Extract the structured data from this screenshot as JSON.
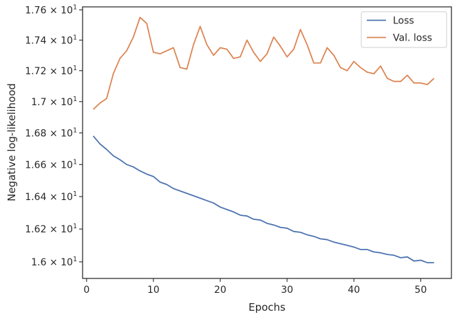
{
  "chart_data": {
    "type": "line",
    "xlabel": "Epochs",
    "ylabel": "Negative log-likelihood",
    "xlim": [
      -0.6,
      54.6
    ],
    "ylim": [
      15.9,
      17.62
    ],
    "y_scale": "log",
    "grid": false,
    "legend_position": "top-right",
    "x_ticks": [
      {
        "value": 0,
        "label": "0"
      },
      {
        "value": 10,
        "label": "10"
      },
      {
        "value": 20,
        "label": "20"
      },
      {
        "value": 30,
        "label": "30"
      },
      {
        "value": 40,
        "label": "40"
      },
      {
        "value": 50,
        "label": "50"
      }
    ],
    "y_ticks": [
      {
        "value": 16.0,
        "mantissa": "1.6",
        "times": "×",
        "base": "10",
        "exponent": "1"
      },
      {
        "value": 16.2,
        "mantissa": "1.62",
        "times": "×",
        "base": "10",
        "exponent": "1"
      },
      {
        "value": 16.4,
        "mantissa": "1.64",
        "times": "×",
        "base": "10",
        "exponent": "1"
      },
      {
        "value": 16.6,
        "mantissa": "1.66",
        "times": "×",
        "base": "10",
        "exponent": "1"
      },
      {
        "value": 16.8,
        "mantissa": "1.68",
        "times": "×",
        "base": "10",
        "exponent": "1"
      },
      {
        "value": 17.0,
        "mantissa": "1.7",
        "times": "×",
        "base": "10",
        "exponent": "1"
      },
      {
        "value": 17.2,
        "mantissa": "1.72",
        "times": "×",
        "base": "10",
        "exponent": "1"
      },
      {
        "value": 17.4,
        "mantissa": "1.74",
        "times": "×",
        "base": "10",
        "exponent": "1"
      },
      {
        "value": 17.6,
        "mantissa": "1.76",
        "times": "×",
        "base": "10",
        "exponent": "1"
      }
    ],
    "x": [
      1,
      2,
      3,
      4,
      5,
      6,
      7,
      8,
      9,
      10,
      11,
      12,
      13,
      14,
      15,
      16,
      17,
      18,
      19,
      20,
      21,
      22,
      23,
      24,
      25,
      26,
      27,
      28,
      29,
      30,
      31,
      32,
      33,
      34,
      35,
      36,
      37,
      38,
      39,
      40,
      41,
      42,
      43,
      44,
      45,
      46,
      47,
      48,
      49,
      50,
      51,
      52
    ],
    "series": [
      {
        "name": "Loss",
        "color": "#4c72b0",
        "values": [
          16.78,
          16.73,
          16.695,
          16.655,
          16.63,
          16.6,
          16.585,
          16.56,
          16.54,
          16.525,
          16.49,
          16.475,
          16.45,
          16.435,
          16.42,
          16.405,
          16.39,
          16.375,
          16.36,
          16.335,
          16.32,
          16.305,
          16.285,
          16.28,
          16.26,
          16.255,
          16.235,
          16.225,
          16.21,
          16.205,
          16.185,
          16.18,
          16.165,
          16.155,
          16.14,
          16.135,
          16.12,
          16.11,
          16.1,
          16.09,
          16.075,
          16.075,
          16.06,
          16.055,
          16.045,
          16.04,
          16.025,
          16.03,
          16.005,
          16.01,
          15.995,
          15.995
        ]
      },
      {
        "name": "Val. loss",
        "color": "#dd8452",
        "values": [
          16.95,
          16.99,
          17.02,
          17.18,
          17.28,
          17.33,
          17.42,
          17.55,
          17.51,
          17.32,
          17.31,
          17.33,
          17.35,
          17.22,
          17.21,
          17.37,
          17.49,
          17.37,
          17.3,
          17.35,
          17.34,
          17.28,
          17.29,
          17.4,
          17.32,
          17.26,
          17.31,
          17.42,
          17.36,
          17.29,
          17.34,
          17.47,
          17.37,
          17.25,
          17.25,
          17.35,
          17.3,
          17.22,
          17.2,
          17.26,
          17.22,
          17.19,
          17.18,
          17.23,
          17.15,
          17.13,
          17.13,
          17.17,
          17.12,
          17.12,
          17.11,
          17.15
        ]
      }
    ]
  }
}
